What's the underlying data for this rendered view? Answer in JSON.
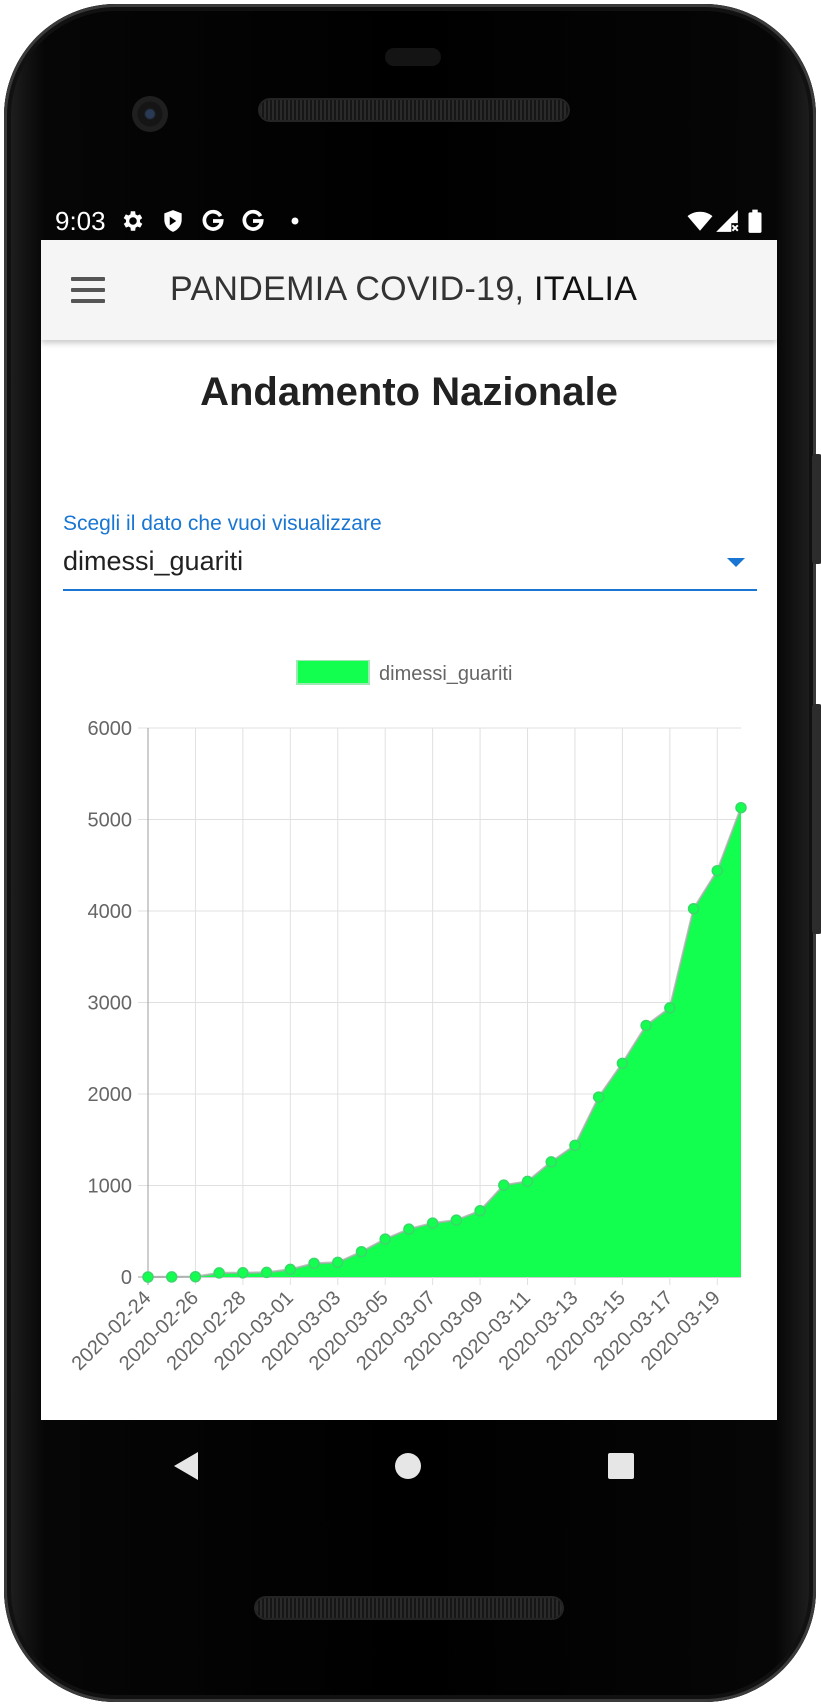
{
  "status_bar": {
    "time": "9:03",
    "left_icons": [
      "settings-icon",
      "shield-icon",
      "google-icon",
      "google-icon",
      "dot-icon"
    ],
    "right_icons": [
      "wifi-icon",
      "signal-icon",
      "battery-icon"
    ]
  },
  "app_bar": {
    "menu_icon": "hamburger-menu-icon",
    "title_prefix": "PANDEMIA COVID-19, ",
    "title_suffix": "ITALIA"
  },
  "page": {
    "title": "Andamento Nazionale"
  },
  "select": {
    "label": "Scegli il dato che vuoi visualizzare",
    "value": "dimessi_guariti",
    "arrow_icon": "dropdown-arrow-icon"
  },
  "chart_data": {
    "type": "area",
    "legend": [
      "dimessi_guariti"
    ],
    "legend_position": "top",
    "grid": true,
    "ylim": [
      0,
      6000
    ],
    "yticks": [
      "0",
      "1000",
      "2000",
      "3000",
      "4000",
      "5000",
      "6000"
    ],
    "xticks": [
      "2020-02-24",
      "2020-02-26",
      "2020-02-28",
      "2020-03-01",
      "2020-03-03",
      "2020-03-05",
      "2020-03-07",
      "2020-03-09",
      "2020-03-11",
      "2020-03-13",
      "2020-03-15",
      "2020-03-17",
      "2020-03-19"
    ],
    "x": [
      "2020-02-24",
      "2020-02-25",
      "2020-02-26",
      "2020-02-27",
      "2020-02-28",
      "2020-02-29",
      "2020-03-01",
      "2020-03-02",
      "2020-03-03",
      "2020-03-04",
      "2020-03-05",
      "2020-03-06",
      "2020-03-07",
      "2020-03-08",
      "2020-03-09",
      "2020-03-10",
      "2020-03-11",
      "2020-03-12",
      "2020-03-13",
      "2020-03-14",
      "2020-03-15",
      "2020-03-16",
      "2020-03-17",
      "2020-03-18",
      "2020-03-19",
      "2020-03-20"
    ],
    "series": [
      {
        "name": "dimessi_guariti",
        "color": "#12ff50",
        "values": [
          0,
          1,
          3,
          45,
          46,
          50,
          83,
          149,
          160,
          276,
          414,
          523,
          589,
          622,
          724,
          1004,
          1045,
          1258,
          1439,
          1966,
          2335,
          2749,
          2941,
          4025,
          4440,
          5129
        ]
      }
    ]
  },
  "nav_bar": {
    "back_icon": "back-triangle-icon",
    "home_icon": "home-circle-icon",
    "recents_icon": "recents-square-icon"
  }
}
